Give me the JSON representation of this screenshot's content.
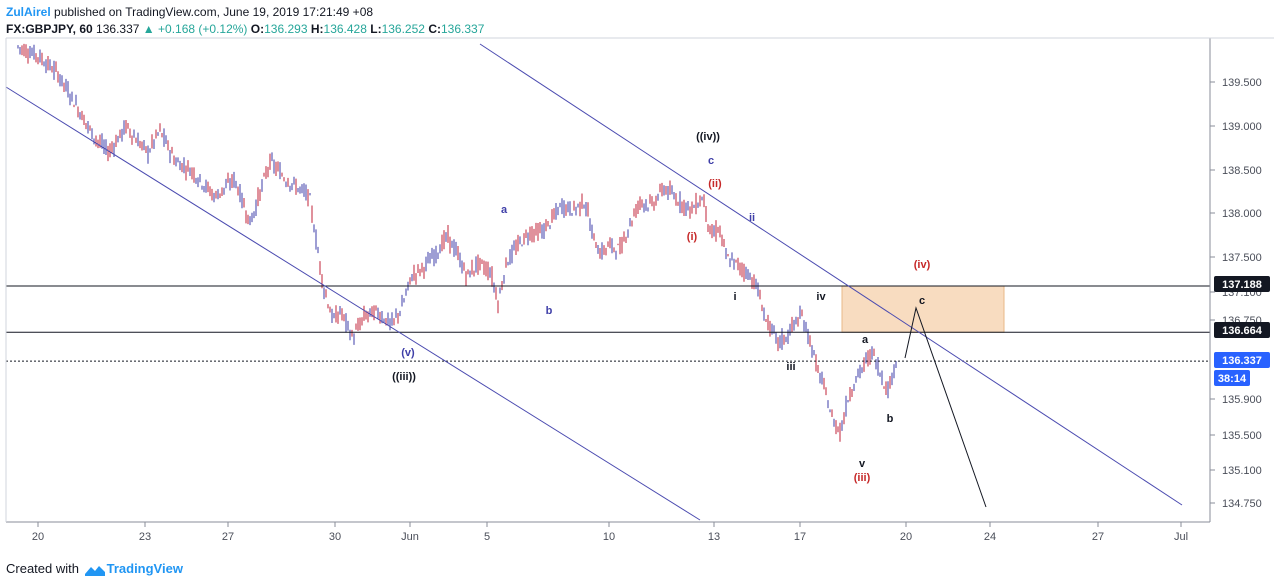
{
  "header": {
    "author": "ZulAirel",
    "published_text": "published on TradingView.com, June 19, 2019 17:21:49 +08",
    "symbol": "FX:GBPJPY, 60",
    "last": "136.337",
    "change": "+0.168 (+0.12%)",
    "o_label": "O:",
    "o_value": "136.293",
    "h_label": "H:",
    "h_value": "136.428",
    "l_label": "L:",
    "l_value": "136.252",
    "c_label": "C:",
    "c_value": "136.337"
  },
  "footer": {
    "created_with": "Created with",
    "brand": "TradingView"
  },
  "chart_data": {
    "type": "candlestick",
    "y_ticks": [
      "139.500",
      "139.000",
      "138.500",
      "138.000",
      "137.500",
      "137.100",
      "136.750",
      "136.664",
      "135.900",
      "135.500",
      "135.100",
      "134.750"
    ],
    "x_ticks": [
      "20",
      "23",
      "27",
      "30",
      "Jun",
      "5",
      "10",
      "13",
      "17",
      "20",
      "24",
      "27",
      "Jul"
    ],
    "price_labels": [
      {
        "text": "137.188",
        "value": 137.188,
        "style": "level"
      },
      {
        "text": "136.664",
        "value": 136.664,
        "style": "level"
      },
      {
        "text": "136.337",
        "value": 136.337,
        "style": "current"
      },
      {
        "text": "38:14",
        "style": "countdown"
      }
    ],
    "horizontal_lines": [
      137.188,
      136.664
    ],
    "current_price": 136.337,
    "zone": {
      "from": 136.664,
      "to": 137.188,
      "start": "Jun 18",
      "end": "Jun 24",
      "color": "#f8dcc0"
    },
    "wave_labels": [
      {
        "text": "((iv))",
        "color": "#131722",
        "at": "Jun 13",
        "price": 139.15
      },
      {
        "text": "c",
        "color": "#3f3fa8",
        "at": "Jun 13",
        "price": 138.78
      },
      {
        "text": "(ii)",
        "color": "#c62828",
        "at": "Jun 13",
        "price": 138.3
      },
      {
        "text": "a",
        "color": "#3f3fa8",
        "at": "Jun 5",
        "price": 138.0
      },
      {
        "text": "b",
        "color": "#3f3fa8",
        "at": "Jun 7",
        "price": 136.98
      },
      {
        "text": "(i)",
        "color": "#c62828",
        "at": "Jun 12",
        "price": 137.7
      },
      {
        "text": "ii",
        "color": "#3f3fa8",
        "at": "Jun 14",
        "price": 137.9
      },
      {
        "text": "i",
        "color": "#131722",
        "at": "Jun 14",
        "price": 137.13
      },
      {
        "text": "iv",
        "color": "#131722",
        "at": "Jun 17",
        "price": 137.12
      },
      {
        "text": "(iv)",
        "color": "#c62828",
        "at": "Jun 21",
        "price": 137.4
      },
      {
        "text": "c",
        "color": "#131722",
        "at": "Jun 20",
        "price": 137.05
      },
      {
        "text": "(v)",
        "color": "#3f3fa8",
        "at": "May 31",
        "price": 136.37
      },
      {
        "text": "((iii))",
        "color": "#131722",
        "at": "May 31",
        "price": 136.12
      },
      {
        "text": "iii",
        "color": "#131722",
        "at": "Jun 17",
        "price": 136.25
      },
      {
        "text": "a",
        "color": "#131722",
        "at": "Jun 19",
        "price": 136.57
      },
      {
        "text": "b",
        "color": "#131722",
        "at": "Jun 19",
        "price": 135.68
      },
      {
        "text": "v",
        "color": "#131722",
        "at": "Jun 18",
        "price": 135.2
      },
      {
        "text": "(iii)",
        "color": "#c62828",
        "at": "Jun 18",
        "price": 135.02
      }
    ],
    "candle_color_up": "#3c3ca8",
    "candle_color_down": "#c0233a",
    "channel_color": "#4b4bb0",
    "grid": false,
    "price_path": [
      [
        0,
        139.9
      ],
      [
        10,
        139.8
      ],
      [
        20,
        139.6
      ],
      [
        28,
        139.3
      ],
      [
        38,
        138.9
      ],
      [
        46,
        138.7
      ],
      [
        55,
        139.0
      ],
      [
        60,
        138.85
      ],
      [
        66,
        138.7
      ],
      [
        72,
        138.95
      ],
      [
        80,
        138.6
      ],
      [
        88,
        138.5
      ],
      [
        100,
        138.2
      ],
      [
        110,
        138.4
      ],
      [
        118,
        137.9
      ],
      [
        128,
        138.6
      ],
      [
        136,
        138.4
      ],
      [
        148,
        138.2
      ],
      [
        155,
        137.2
      ],
      [
        160,
        136.8
      ],
      [
        164,
        136.9
      ],
      [
        170,
        136.6
      ],
      [
        176,
        136.85
      ],
      [
        182,
        136.9
      ],
      [
        190,
        136.75
      ],
      [
        195,
        136.95
      ],
      [
        200,
        137.3
      ],
      [
        206,
        137.4
      ],
      [
        212,
        137.55
      ],
      [
        218,
        137.75
      ],
      [
        222,
        137.6
      ],
      [
        228,
        137.3
      ],
      [
        234,
        137.45
      ],
      [
        240,
        137.35
      ],
      [
        244,
        137.0
      ],
      [
        248,
        137.45
      ],
      [
        254,
        137.65
      ],
      [
        260,
        137.8
      ],
      [
        266,
        137.8
      ],
      [
        270,
        137.9
      ],
      [
        276,
        138.1
      ],
      [
        282,
        138.05
      ],
      [
        288,
        138.15
      ],
      [
        292,
        137.75
      ],
      [
        296,
        137.55
      ],
      [
        300,
        137.65
      ],
      [
        306,
        137.6
      ],
      [
        310,
        137.85
      ],
      [
        316,
        138.15
      ],
      [
        322,
        138.1
      ],
      [
        328,
        138.3
      ],
      [
        336,
        138.15
      ],
      [
        342,
        138.05
      ],
      [
        348,
        138.2
      ],
      [
        352,
        137.75
      ],
      [
        356,
        137.85
      ],
      [
        360,
        137.5
      ],
      [
        364,
        137.45
      ],
      [
        370,
        137.35
      ],
      [
        375,
        137.2
      ],
      [
        380,
        136.8
      ],
      [
        386,
        136.55
      ],
      [
        390,
        136.6
      ],
      [
        394,
        136.75
      ],
      [
        398,
        136.85
      ],
      [
        402,
        136.6
      ],
      [
        406,
        136.25
      ],
      [
        410,
        136.0
      ],
      [
        414,
        135.65
      ],
      [
        418,
        135.55
      ],
      [
        422,
        135.95
      ],
      [
        426,
        136.15
      ],
      [
        430,
        136.3
      ],
      [
        434,
        136.45
      ],
      [
        438,
        136.2
      ],
      [
        442,
        136.0
      ],
      [
        446,
        136.35
      ]
    ]
  }
}
